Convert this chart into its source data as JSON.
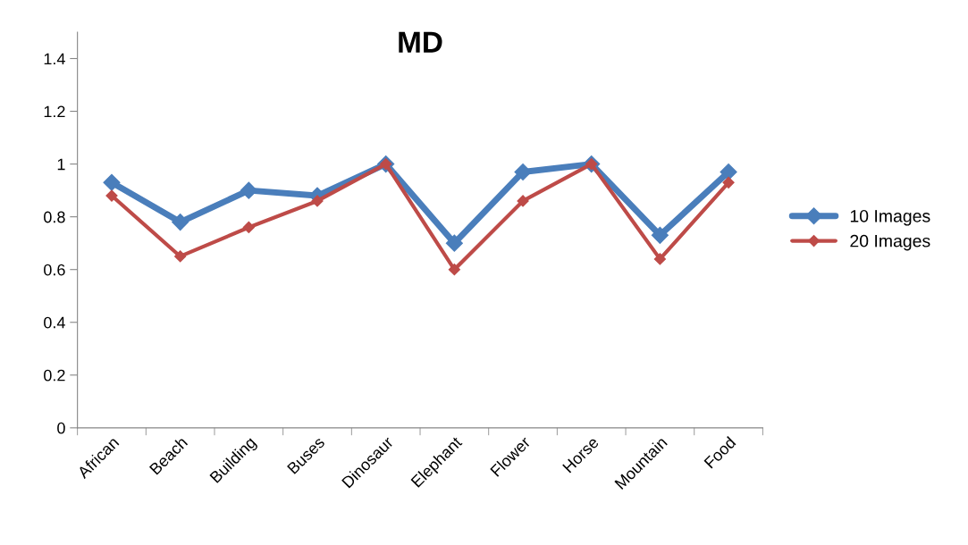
{
  "chart_data": {
    "type": "line",
    "title": "MD",
    "categories": [
      "African",
      "Beach",
      "Building",
      "Buses",
      "Dinosaur",
      "Elephant",
      "Flower",
      "Horse",
      "Mountain",
      "Food"
    ],
    "series": [
      {
        "name": "10 Images",
        "color": "#4a7ebb",
        "values": [
          0.93,
          0.78,
          0.9,
          0.88,
          1.0,
          0.7,
          0.97,
          1.0,
          0.73,
          0.97
        ]
      },
      {
        "name": "20 Images",
        "color": "#be4b48",
        "values": [
          0.88,
          0.65,
          0.76,
          0.86,
          1.0,
          0.6,
          0.86,
          1.0,
          0.64,
          0.93
        ]
      }
    ],
    "ylim": [
      0,
      1.5
    ],
    "yticks": [
      0,
      0.2,
      0.4,
      0.6,
      0.8,
      1,
      1.2,
      1.4
    ],
    "grid": false,
    "legend": "right",
    "marker": "diamond",
    "line_style": "solid"
  }
}
